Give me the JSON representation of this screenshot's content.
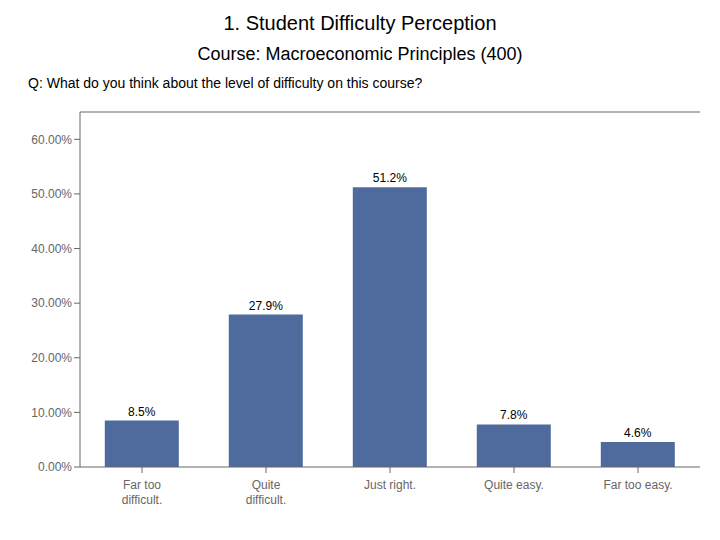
{
  "chart_data": {
    "type": "bar",
    "title": "1.  Student Difficulty Perception",
    "subtitle": "Course: Macroeconomic Principles (400)",
    "annotations": [
      "Q: What do you think about the level of difficulty on this course?"
    ],
    "categories": [
      "Far too\ndifficult.",
      "Quite\ndifficult.",
      "Just right.",
      "Quite easy.",
      "Far too easy."
    ],
    "values": [
      8.5,
      27.9,
      51.2,
      7.8,
      4.6
    ],
    "value_labels": [
      "8.5%",
      "27.9%",
      "51.2%",
      "7.8%",
      "4.6%"
    ],
    "data_labels": true,
    "color": "#4F6B9E",
    "ylim": [
      0,
      65
    ],
    "yticks": [
      {
        "value": 0,
        "label": "0.00%"
      },
      {
        "value": 10,
        "label": "10.00%"
      },
      {
        "value": 20,
        "label": "20.00%"
      },
      {
        "value": 30,
        "label": "30.00%"
      },
      {
        "value": 40,
        "label": "40.00%"
      },
      {
        "value": 50,
        "label": "50.00%"
      },
      {
        "value": 60,
        "label": "60.00%"
      }
    ],
    "grid": false
  }
}
